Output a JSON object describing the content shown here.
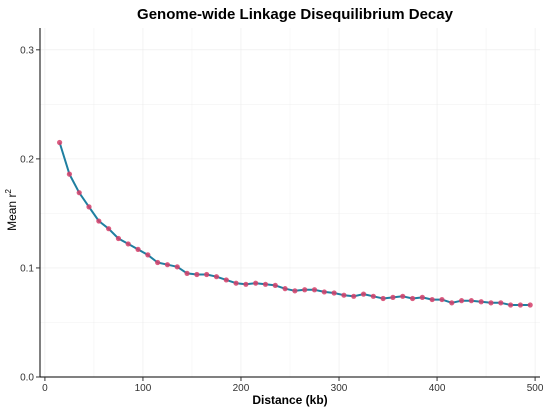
{
  "chart_data": {
    "type": "line",
    "title": "Genome-wide Linkage Disequilibrium Decay",
    "xlabel": "Distance (kb)",
    "ylabel_base": "Mean r",
    "ylabel_superscript": "2",
    "xlim": [
      -5,
      505
    ],
    "ylim": [
      0,
      0.32
    ],
    "x_ticks": [
      0,
      100,
      200,
      300,
      400,
      500
    ],
    "y_ticks": [
      0.0,
      0.1,
      0.2,
      0.3
    ],
    "y_tick_labels": [
      "0.0",
      "0.1",
      "0.2",
      "0.3"
    ],
    "grid": true,
    "line_color": "#1f7fa0",
    "point_color": "#d6406a",
    "series": [
      {
        "x": [
          15,
          25,
          35,
          45,
          55,
          65,
          75,
          85,
          95,
          105,
          115,
          125,
          135,
          145,
          155,
          165,
          175,
          185,
          195,
          205,
          215,
          225,
          235,
          245,
          255,
          265,
          275,
          285,
          295,
          305,
          315,
          325,
          335,
          345,
          355,
          365,
          375,
          385,
          395,
          405,
          415,
          425,
          435,
          445,
          455,
          465,
          475,
          485,
          495
        ],
        "y": [
          0.215,
          0.186,
          0.169,
          0.156,
          0.143,
          0.136,
          0.127,
          0.122,
          0.117,
          0.112,
          0.105,
          0.103,
          0.101,
          0.095,
          0.094,
          0.094,
          0.092,
          0.089,
          0.086,
          0.085,
          0.086,
          0.085,
          0.084,
          0.081,
          0.079,
          0.08,
          0.08,
          0.078,
          0.077,
          0.075,
          0.074,
          0.076,
          0.074,
          0.072,
          0.073,
          0.074,
          0.072,
          0.073,
          0.071,
          0.071,
          0.068,
          0.07,
          0.07,
          0.069,
          0.068,
          0.068,
          0.066,
          0.066,
          0.066
        ]
      }
    ]
  }
}
